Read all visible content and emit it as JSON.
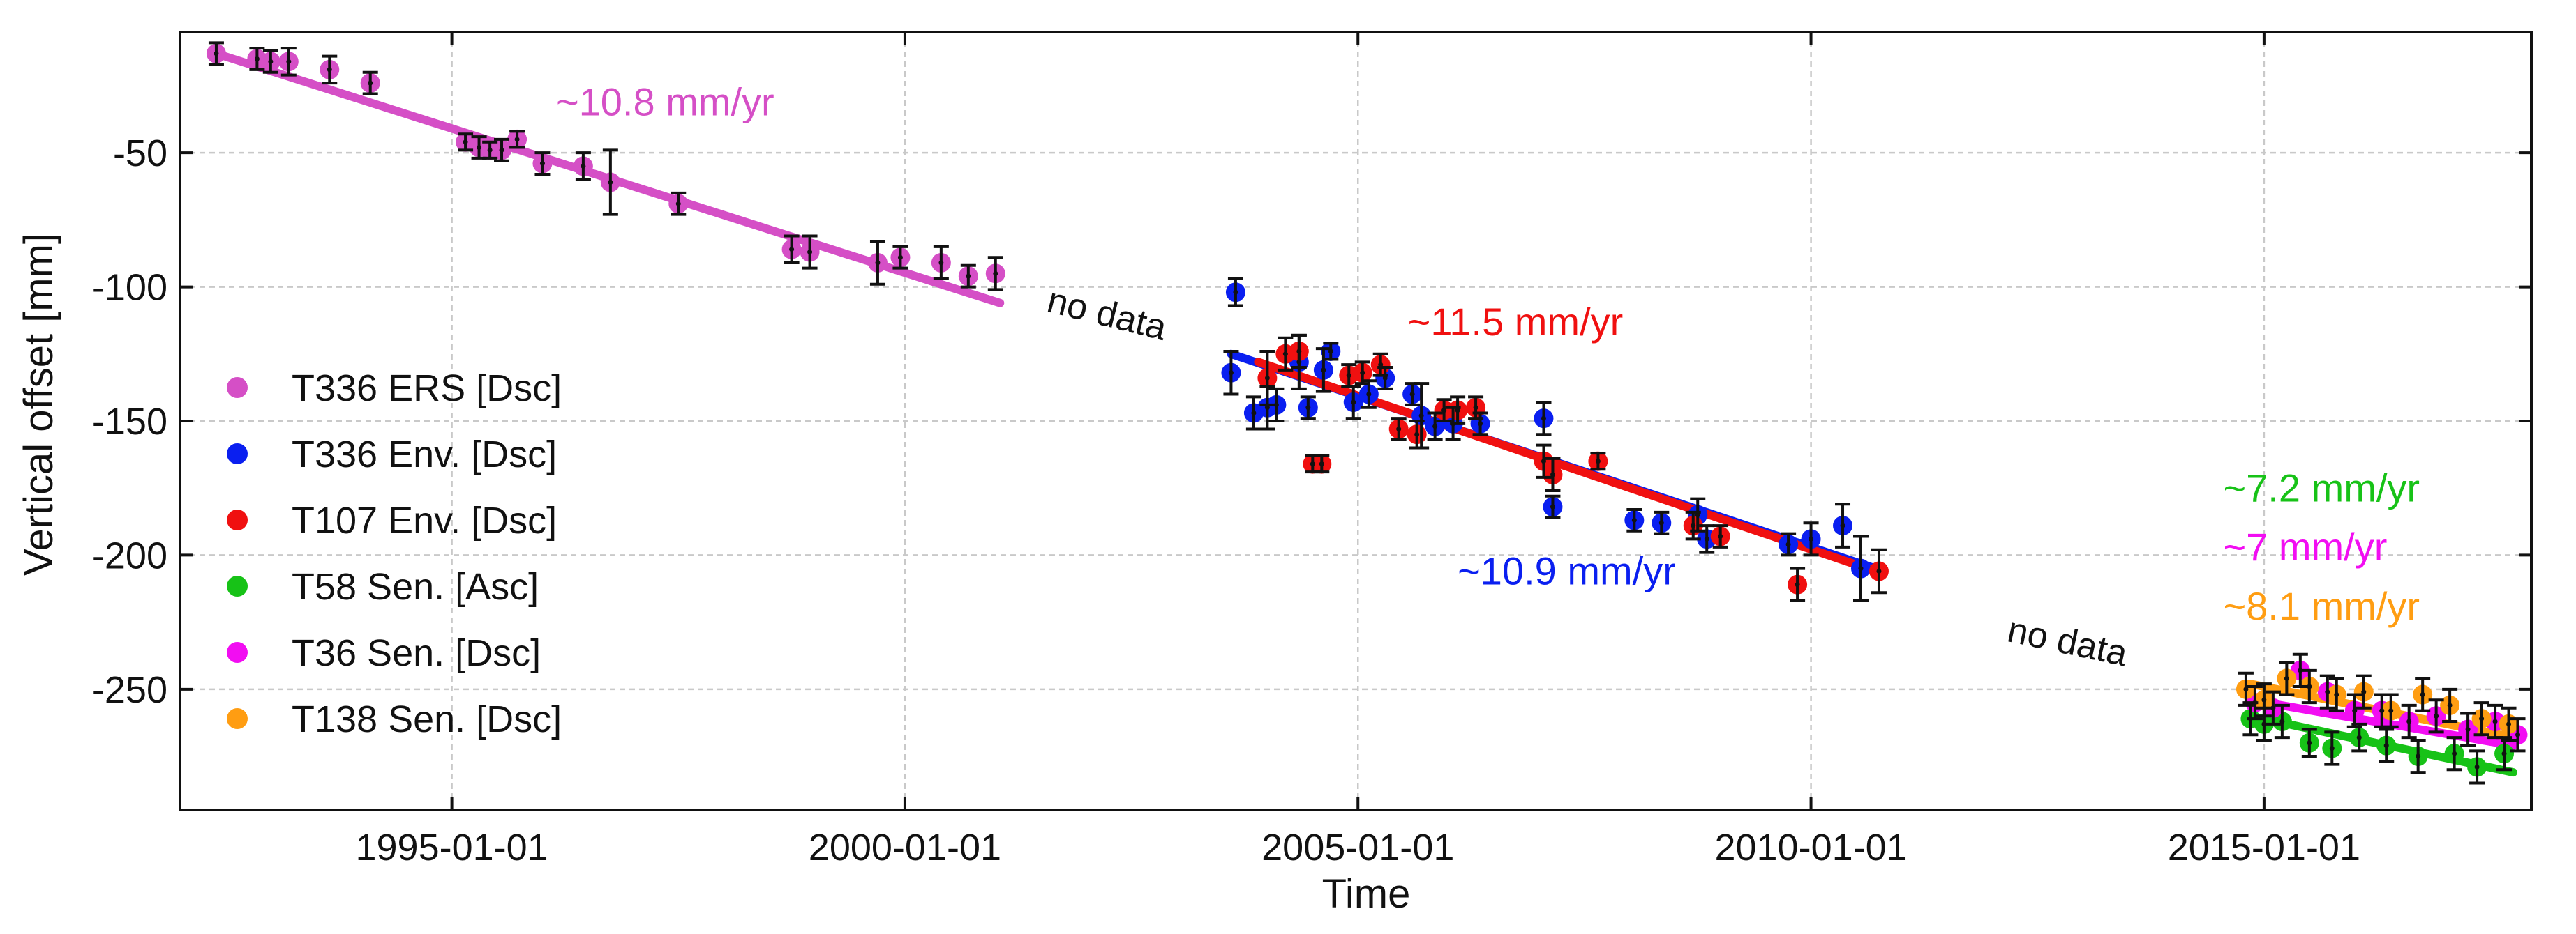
{
  "chart_data": {
    "type": "scatter",
    "xlabel": "Time",
    "ylabel": "Vertical offset [mm]",
    "xlim": [
      1992.0,
      2017.95
    ],
    "ylim": [
      -295,
      -5
    ],
    "x_ticks": [
      {
        "value": 1995.0,
        "label": "1995-01-01"
      },
      {
        "value": 2000.0,
        "label": "2000-01-01"
      },
      {
        "value": 2005.0,
        "label": "2005-01-01"
      },
      {
        "value": 2010.0,
        "label": "2010-01-01"
      },
      {
        "value": 2015.0,
        "label": "2015-01-01"
      }
    ],
    "y_ticks": [
      -50,
      -100,
      -150,
      -200,
      -250
    ],
    "grid": true,
    "legend_position": "left",
    "series": [
      {
        "name": "T336 ERS [Dsc]",
        "color": "#d54fc6",
        "points": [
          {
            "x": 1992.4,
            "y": -13,
            "err": 4
          },
          {
            "x": 1992.85,
            "y": -15,
            "err": 4
          },
          {
            "x": 1993.0,
            "y": -16,
            "err": 4
          },
          {
            "x": 1993.2,
            "y": -16,
            "err": 5
          },
          {
            "x": 1993.65,
            "y": -19,
            "err": 5
          },
          {
            "x": 1994.1,
            "y": -24,
            "err": 4
          },
          {
            "x": 1995.15,
            "y": -46,
            "err": 3
          },
          {
            "x": 1995.3,
            "y": -48,
            "err": 4
          },
          {
            "x": 1995.42,
            "y": -49,
            "err": 3
          },
          {
            "x": 1995.55,
            "y": -49,
            "err": 4
          },
          {
            "x": 1995.72,
            "y": -45,
            "err": 3
          },
          {
            "x": 1996.0,
            "y": -54,
            "err": 4
          },
          {
            "x": 1996.45,
            "y": -55,
            "err": 5
          },
          {
            "x": 1996.75,
            "y": -61,
            "err": 12
          },
          {
            "x": 1997.5,
            "y": -69,
            "err": 4
          },
          {
            "x": 1998.75,
            "y": -86,
            "err": 5
          },
          {
            "x": 1998.95,
            "y": -87,
            "err": 6
          },
          {
            "x": 1999.7,
            "y": -91,
            "err": 8
          },
          {
            "x": 1999.95,
            "y": -89,
            "err": 4
          },
          {
            "x": 2000.4,
            "y": -91,
            "err": 6
          },
          {
            "x": 2000.7,
            "y": -96,
            "err": 4
          },
          {
            "x": 2001.0,
            "y": -95,
            "err": 6
          }
        ],
        "fit": {
          "x": [
            1992.4,
            2001.05
          ],
          "y": [
            -13,
            -106
          ]
        }
      },
      {
        "name": "T336 Env. [Dsc]",
        "color": "#0a1ff0",
        "points": [
          {
            "x": 2003.65,
            "y": -102,
            "err": 5
          },
          {
            "x": 2003.6,
            "y": -132,
            "err": 8
          },
          {
            "x": 2003.85,
            "y": -147,
            "err": 6
          },
          {
            "x": 2004.0,
            "y": -145,
            "err": 8
          },
          {
            "x": 2004.1,
            "y": -144,
            "err": 6
          },
          {
            "x": 2004.35,
            "y": -128,
            "err": 10
          },
          {
            "x": 2004.45,
            "y": -145,
            "err": 4
          },
          {
            "x": 2004.62,
            "y": -131,
            "err": 8
          },
          {
            "x": 2004.7,
            "y": -124,
            "err": 3
          },
          {
            "x": 2004.95,
            "y": -143,
            "err": 6
          },
          {
            "x": 2005.12,
            "y": -140,
            "err": 5
          },
          {
            "x": 2005.3,
            "y": -134,
            "err": 4
          },
          {
            "x": 2005.6,
            "y": -140,
            "err": 4
          },
          {
            "x": 2005.7,
            "y": -148,
            "err": 12
          },
          {
            "x": 2005.85,
            "y": -152,
            "err": 5
          },
          {
            "x": 2006.05,
            "y": -151,
            "err": 6
          },
          {
            "x": 2006.35,
            "y": -151,
            "err": 4
          },
          {
            "x": 2007.05,
            "y": -149,
            "err": 6
          },
          {
            "x": 2007.15,
            "y": -182,
            "err": 4
          },
          {
            "x": 2008.05,
            "y": -187,
            "err": 4
          },
          {
            "x": 2008.35,
            "y": -188,
            "err": 4
          },
          {
            "x": 2008.75,
            "y": -185,
            "err": 6
          },
          {
            "x": 2008.85,
            "y": -194,
            "err": 5
          },
          {
            "x": 2009.75,
            "y": -196,
            "err": 4
          },
          {
            "x": 2010.0,
            "y": -194,
            "err": 6
          },
          {
            "x": 2010.35,
            "y": -189,
            "err": 8
          },
          {
            "x": 2010.55,
            "y": -205,
            "err": 12
          }
        ],
        "fit": {
          "x": [
            2003.6,
            2010.8
          ],
          "y": [
            -125,
            -206
          ]
        }
      },
      {
        "name": "T107 Env. [Dsc]",
        "color": "#f01010",
        "points": [
          {
            "x": 2004.0,
            "y": -134,
            "err": 10
          },
          {
            "x": 2004.2,
            "y": -125,
            "err": 6
          },
          {
            "x": 2004.35,
            "y": -124,
            "err": 6
          },
          {
            "x": 2004.5,
            "y": -166,
            "err": 3
          },
          {
            "x": 2004.6,
            "y": -166,
            "err": 3
          },
          {
            "x": 2004.9,
            "y": -133,
            "err": 4
          },
          {
            "x": 2005.05,
            "y": -132,
            "err": 4
          },
          {
            "x": 2005.25,
            "y": -129,
            "err": 4
          },
          {
            "x": 2005.45,
            "y": -153,
            "err": 4
          },
          {
            "x": 2005.65,
            "y": -155,
            "err": 5
          },
          {
            "x": 2005.95,
            "y": -146,
            "err": 4
          },
          {
            "x": 2006.1,
            "y": -146,
            "err": 5
          },
          {
            "x": 2006.3,
            "y": -145,
            "err": 4
          },
          {
            "x": 2007.05,
            "y": -165,
            "err": 6
          },
          {
            "x": 2007.15,
            "y": -170,
            "err": 6
          },
          {
            "x": 2007.65,
            "y": -165,
            "err": 3
          },
          {
            "x": 2008.7,
            "y": -189,
            "err": 5
          },
          {
            "x": 2009.0,
            "y": -193,
            "err": 4
          },
          {
            "x": 2009.85,
            "y": -211,
            "err": 6
          },
          {
            "x": 2010.75,
            "y": -206,
            "err": 8
          }
        ],
        "fit": {
          "x": [
            2003.9,
            2010.8
          ],
          "y": [
            -128,
            -207
          ]
        }
      },
      {
        "name": "T58 Sen. [Asc]",
        "color": "#17c217",
        "points": [
          {
            "x": 2014.85,
            "y": -261,
            "err": 6
          },
          {
            "x": 2015.0,
            "y": -263,
            "err": 6
          },
          {
            "x": 2015.2,
            "y": -262,
            "err": 6
          },
          {
            "x": 2015.5,
            "y": -270,
            "err": 5
          },
          {
            "x": 2015.75,
            "y": -272,
            "err": 6
          },
          {
            "x": 2016.05,
            "y": -268,
            "err": 5
          },
          {
            "x": 2016.35,
            "y": -271,
            "err": 6
          },
          {
            "x": 2016.7,
            "y": -275,
            "err": 6
          },
          {
            "x": 2017.1,
            "y": -274,
            "err": 6
          },
          {
            "x": 2017.35,
            "y": -279,
            "err": 6
          },
          {
            "x": 2017.65,
            "y": -274,
            "err": 6
          }
        ],
        "fit": {
          "x": [
            2014.85,
            2017.75
          ],
          "y": [
            -260,
            -281
          ]
        }
      },
      {
        "name": "T36 Sen. [Dsc]",
        "color": "#f20df2",
        "points": [
          {
            "x": 2014.9,
            "y": -255,
            "err": 6
          },
          {
            "x": 2015.1,
            "y": -257,
            "err": 6
          },
          {
            "x": 2015.4,
            "y": -243,
            "err": 6
          },
          {
            "x": 2015.7,
            "y": -251,
            "err": 6
          },
          {
            "x": 2016.0,
            "y": -258,
            "err": 6
          },
          {
            "x": 2016.3,
            "y": -258,
            "err": 6
          },
          {
            "x": 2016.6,
            "y": -262,
            "err": 6
          },
          {
            "x": 2016.9,
            "y": -260,
            "err": 6
          },
          {
            "x": 2017.25,
            "y": -265,
            "err": 6
          },
          {
            "x": 2017.55,
            "y": -262,
            "err": 6
          },
          {
            "x": 2017.8,
            "y": -267,
            "err": 6
          }
        ],
        "fit": {
          "x": [
            2014.85,
            2017.75
          ],
          "y": [
            -254,
            -271
          ]
        }
      },
      {
        "name": "T138 Sen. [Dsc]",
        "color": "#ff9d12",
        "points": [
          {
            "x": 2014.8,
            "y": -250,
            "err": 6
          },
          {
            "x": 2015.0,
            "y": -254,
            "err": 6
          },
          {
            "x": 2015.25,
            "y": -246,
            "err": 6
          },
          {
            "x": 2015.5,
            "y": -249,
            "err": 6
          },
          {
            "x": 2015.8,
            "y": -252,
            "err": 6
          },
          {
            "x": 2016.1,
            "y": -251,
            "err": 6
          },
          {
            "x": 2016.4,
            "y": -258,
            "err": 6
          },
          {
            "x": 2016.75,
            "y": -252,
            "err": 6
          },
          {
            "x": 2017.05,
            "y": -256,
            "err": 6
          },
          {
            "x": 2017.4,
            "y": -261,
            "err": 6
          },
          {
            "x": 2017.7,
            "y": -263,
            "err": 6
          }
        ],
        "fit": {
          "x": [
            2014.85,
            2017.75
          ],
          "y": [
            -248,
            -268
          ]
        }
      }
    ],
    "annotations": [
      {
        "text": "~10.8 mm/yr",
        "color": "#d54fc6",
        "x": 1996.15,
        "y": -36
      },
      {
        "text": "~11.5 mm/yr",
        "color": "#f01010",
        "x": 2005.55,
        "y": -118
      },
      {
        "text": "~10.9 mm/yr",
        "color": "#0a1ff0",
        "x": 2006.1,
        "y": -211
      },
      {
        "text": "~7.2 mm/yr",
        "color": "#17c217",
        "x": 2014.55,
        "y": -180
      },
      {
        "text": "~7 mm/yr",
        "color": "#f20df2",
        "x": 2014.55,
        "y": -202
      },
      {
        "text": "~8.1 mm/yr",
        "color": "#ff9d12",
        "x": 2014.55,
        "y": -224
      }
    ],
    "no_data_labels": [
      {
        "text": "no data",
        "x": 2001.55,
        "y": -109,
        "rotation": 14
      },
      {
        "text": "no data",
        "x": 2012.15,
        "y": -232,
        "rotation": 12
      }
    ]
  }
}
